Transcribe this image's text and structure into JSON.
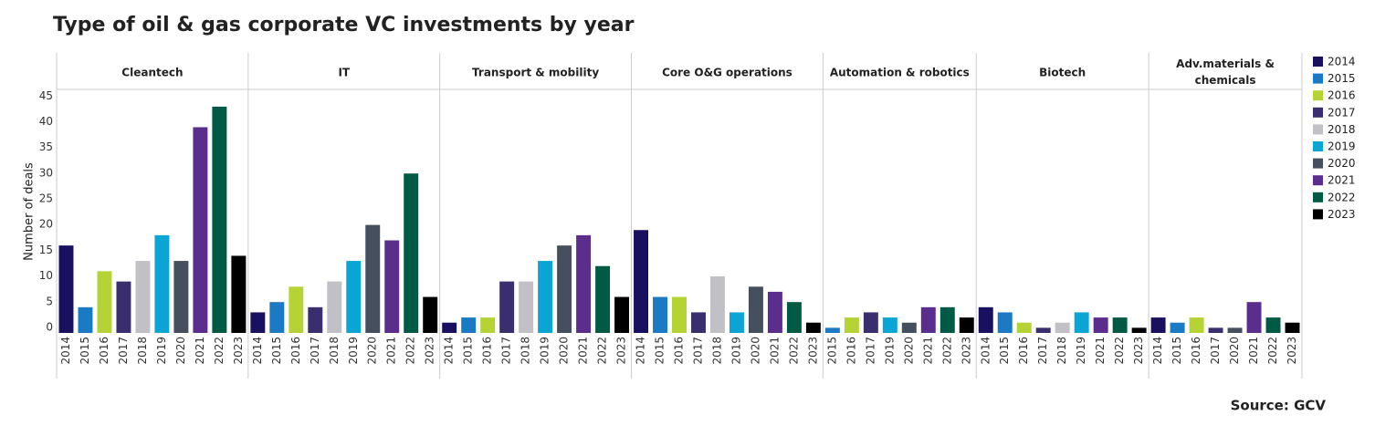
{
  "chart_data": {
    "type": "bar",
    "title": "Type of oil & gas corporate VC investments by year",
    "y_label": "Number of deals",
    "source": "Source: GCV",
    "ylim": [
      0,
      47
    ],
    "yticks": [
      0,
      5,
      10,
      15,
      20,
      25,
      30,
      35,
      40,
      45
    ],
    "grid": false,
    "legend": [
      {
        "name": "2014",
        "color": "#1a1060"
      },
      {
        "name": "2015",
        "color": "#1a7ac4"
      },
      {
        "name": "2016",
        "color": "#b5d334"
      },
      {
        "name": "2017",
        "color": "#3a2e6e"
      },
      {
        "name": "2018",
        "color": "#c0c0c6"
      },
      {
        "name": "2019",
        "color": "#0aa5d4"
      },
      {
        "name": "2020",
        "color": "#454f5e"
      },
      {
        "name": "2021",
        "color": "#5b2e8e"
      },
      {
        "name": "2022",
        "color": "#005a44"
      },
      {
        "name": "2023",
        "color": "#000000"
      }
    ],
    "facets": [
      {
        "title": "Cleantech",
        "categories": [
          "2014",
          "2015",
          "2016",
          "2017",
          "2018",
          "2019",
          "2020",
          "2021",
          "2022",
          "2023"
        ],
        "values": [
          17,
          5,
          12,
          10,
          14,
          19,
          14,
          40,
          44,
          15
        ]
      },
      {
        "title": "IT",
        "categories": [
          "2014",
          "2015",
          "2016",
          "2017",
          "2018",
          "2019",
          "2020",
          "2021",
          "2022",
          "2023"
        ],
        "values": [
          4,
          6,
          9,
          5,
          10,
          14,
          21,
          18,
          31,
          7
        ]
      },
      {
        "title": "Transport & mobility",
        "categories": [
          "2014",
          "2015",
          "2016",
          "2017",
          "2018",
          "2019",
          "2020",
          "2021",
          "2022",
          "2023"
        ],
        "values": [
          2,
          3,
          3,
          10,
          10,
          14,
          17,
          19,
          13,
          7
        ]
      },
      {
        "title": "Core O&G operations",
        "categories": [
          "2014",
          "2015",
          "2016",
          "2017",
          "2018",
          "2019",
          "2020",
          "2021",
          "2022",
          "2023"
        ],
        "values": [
          20,
          7,
          7,
          4,
          11,
          4,
          9,
          8,
          6,
          2
        ]
      },
      {
        "title": "Automation & robotics",
        "categories": [
          "2015",
          "2016",
          "2017",
          "2019",
          "2020",
          "2021",
          "2022",
          "2023"
        ],
        "values": [
          1,
          3,
          4,
          3,
          2,
          5,
          5,
          3
        ]
      },
      {
        "title": "Biotech",
        "categories": [
          "2014",
          "2015",
          "2016",
          "2017",
          "2018",
          "2019",
          "2021",
          "2022",
          "2023"
        ],
        "values": [
          5,
          4,
          2,
          1,
          2,
          4,
          3,
          3,
          1
        ]
      },
      {
        "title": "Adv.materials & chemicals",
        "categories": [
          "2014",
          "2015",
          "2016",
          "2017",
          "2020",
          "2021",
          "2022",
          "2023"
        ],
        "values": [
          3,
          2,
          3,
          1,
          1,
          6,
          3,
          2
        ]
      }
    ]
  }
}
